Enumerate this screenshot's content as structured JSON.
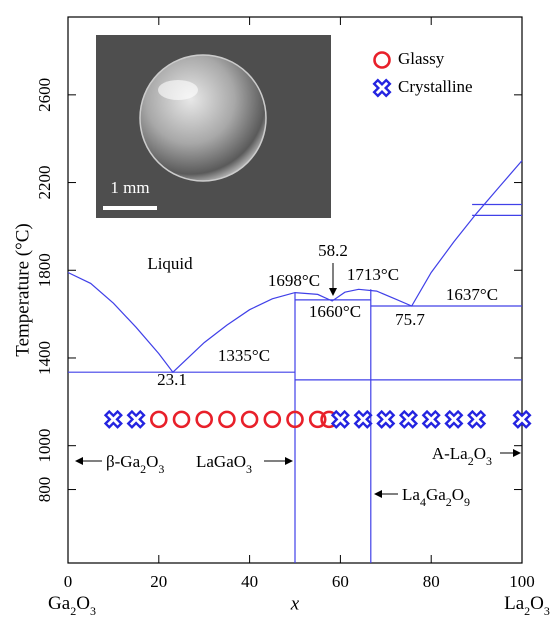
{
  "chart_data": {
    "type": "phase-diagram",
    "x_label": "x",
    "y_label": "Temperature (°C)",
    "xlim": [
      0,
      100
    ],
    "ylim": [
      465,
      2955
    ],
    "xticks": [
      0,
      20,
      40,
      60,
      80,
      100
    ],
    "yticks": [
      800,
      1000,
      1400,
      1800,
      2200,
      2600
    ],
    "series": [
      {
        "name": "Glassy",
        "color": "#e8202a",
        "marker": "circle",
        "x": [
          20,
          25,
          30,
          35,
          40,
          45,
          50,
          55,
          57.5
        ],
        "values": [
          1120,
          1120,
          1120,
          1120,
          1120,
          1120,
          1120,
          1120,
          1120
        ]
      },
      {
        "name": "Crystalline",
        "color": "#2424e0",
        "marker": "cross",
        "x": [
          10,
          15,
          60,
          65,
          70,
          75,
          80,
          85,
          90,
          100
        ],
        "values": [
          1120,
          1120,
          1120,
          1120,
          1120,
          1120,
          1120,
          1120,
          1120,
          1120
        ]
      }
    ],
    "phase_lines": [
      {
        "color": "#4040e8",
        "x": [
          0,
          5,
          10,
          15,
          20,
          23.1,
          30,
          35,
          40,
          45,
          50,
          55,
          58.2,
          61,
          64,
          68,
          72,
          75.7,
          80,
          85,
          90,
          95,
          100
        ],
        "values": [
          1790,
          1740,
          1650,
          1540,
          1420,
          1335,
          1470,
          1550,
          1620,
          1670,
          1698,
          1690,
          1660,
          1700,
          1713,
          1705,
          1670,
          1637,
          1790,
          1930,
          2060,
          2180,
          2300
        ]
      },
      {
        "color": "#4040e8",
        "x": [
          0,
          50
        ],
        "values": [
          1335,
          1335
        ]
      },
      {
        "color": "#4040e8",
        "x": [
          50,
          100
        ],
        "values": [
          1300,
          1300
        ]
      },
      {
        "color": "#4040e8",
        "x": [
          50,
          66.7
        ],
        "values": [
          1665,
          1665
        ]
      },
      {
        "color": "#4040e8",
        "x": [
          66.7,
          100
        ],
        "values": [
          1637,
          1637
        ]
      },
      {
        "color": "#4040e8",
        "x": [
          50,
          50
        ],
        "values": [
          465,
          1698
        ]
      },
      {
        "color": "#4040e8",
        "x": [
          66.7,
          66.7
        ],
        "values": [
          465,
          1713
        ]
      },
      {
        "color": "#4040e8",
        "x": [
          89,
          100
        ],
        "values": [
          2100,
          2100
        ]
      },
      {
        "color": "#4040e8",
        "x": [
          89,
          100
        ],
        "values": [
          2050,
          2050
        ]
      }
    ],
    "annotations": [
      "Liquid",
      "1335°C",
      "23.1",
      "1698°C",
      "58.2",
      "1713°C",
      "1660°C",
      "75.7",
      "1637°C",
      "β-Ga2O3",
      "LaGaO3",
      "La4Ga2O9",
      "A-La2O3",
      "Ga2O3",
      "La2O3"
    ],
    "inset_scale_label": "1 mm"
  }
}
